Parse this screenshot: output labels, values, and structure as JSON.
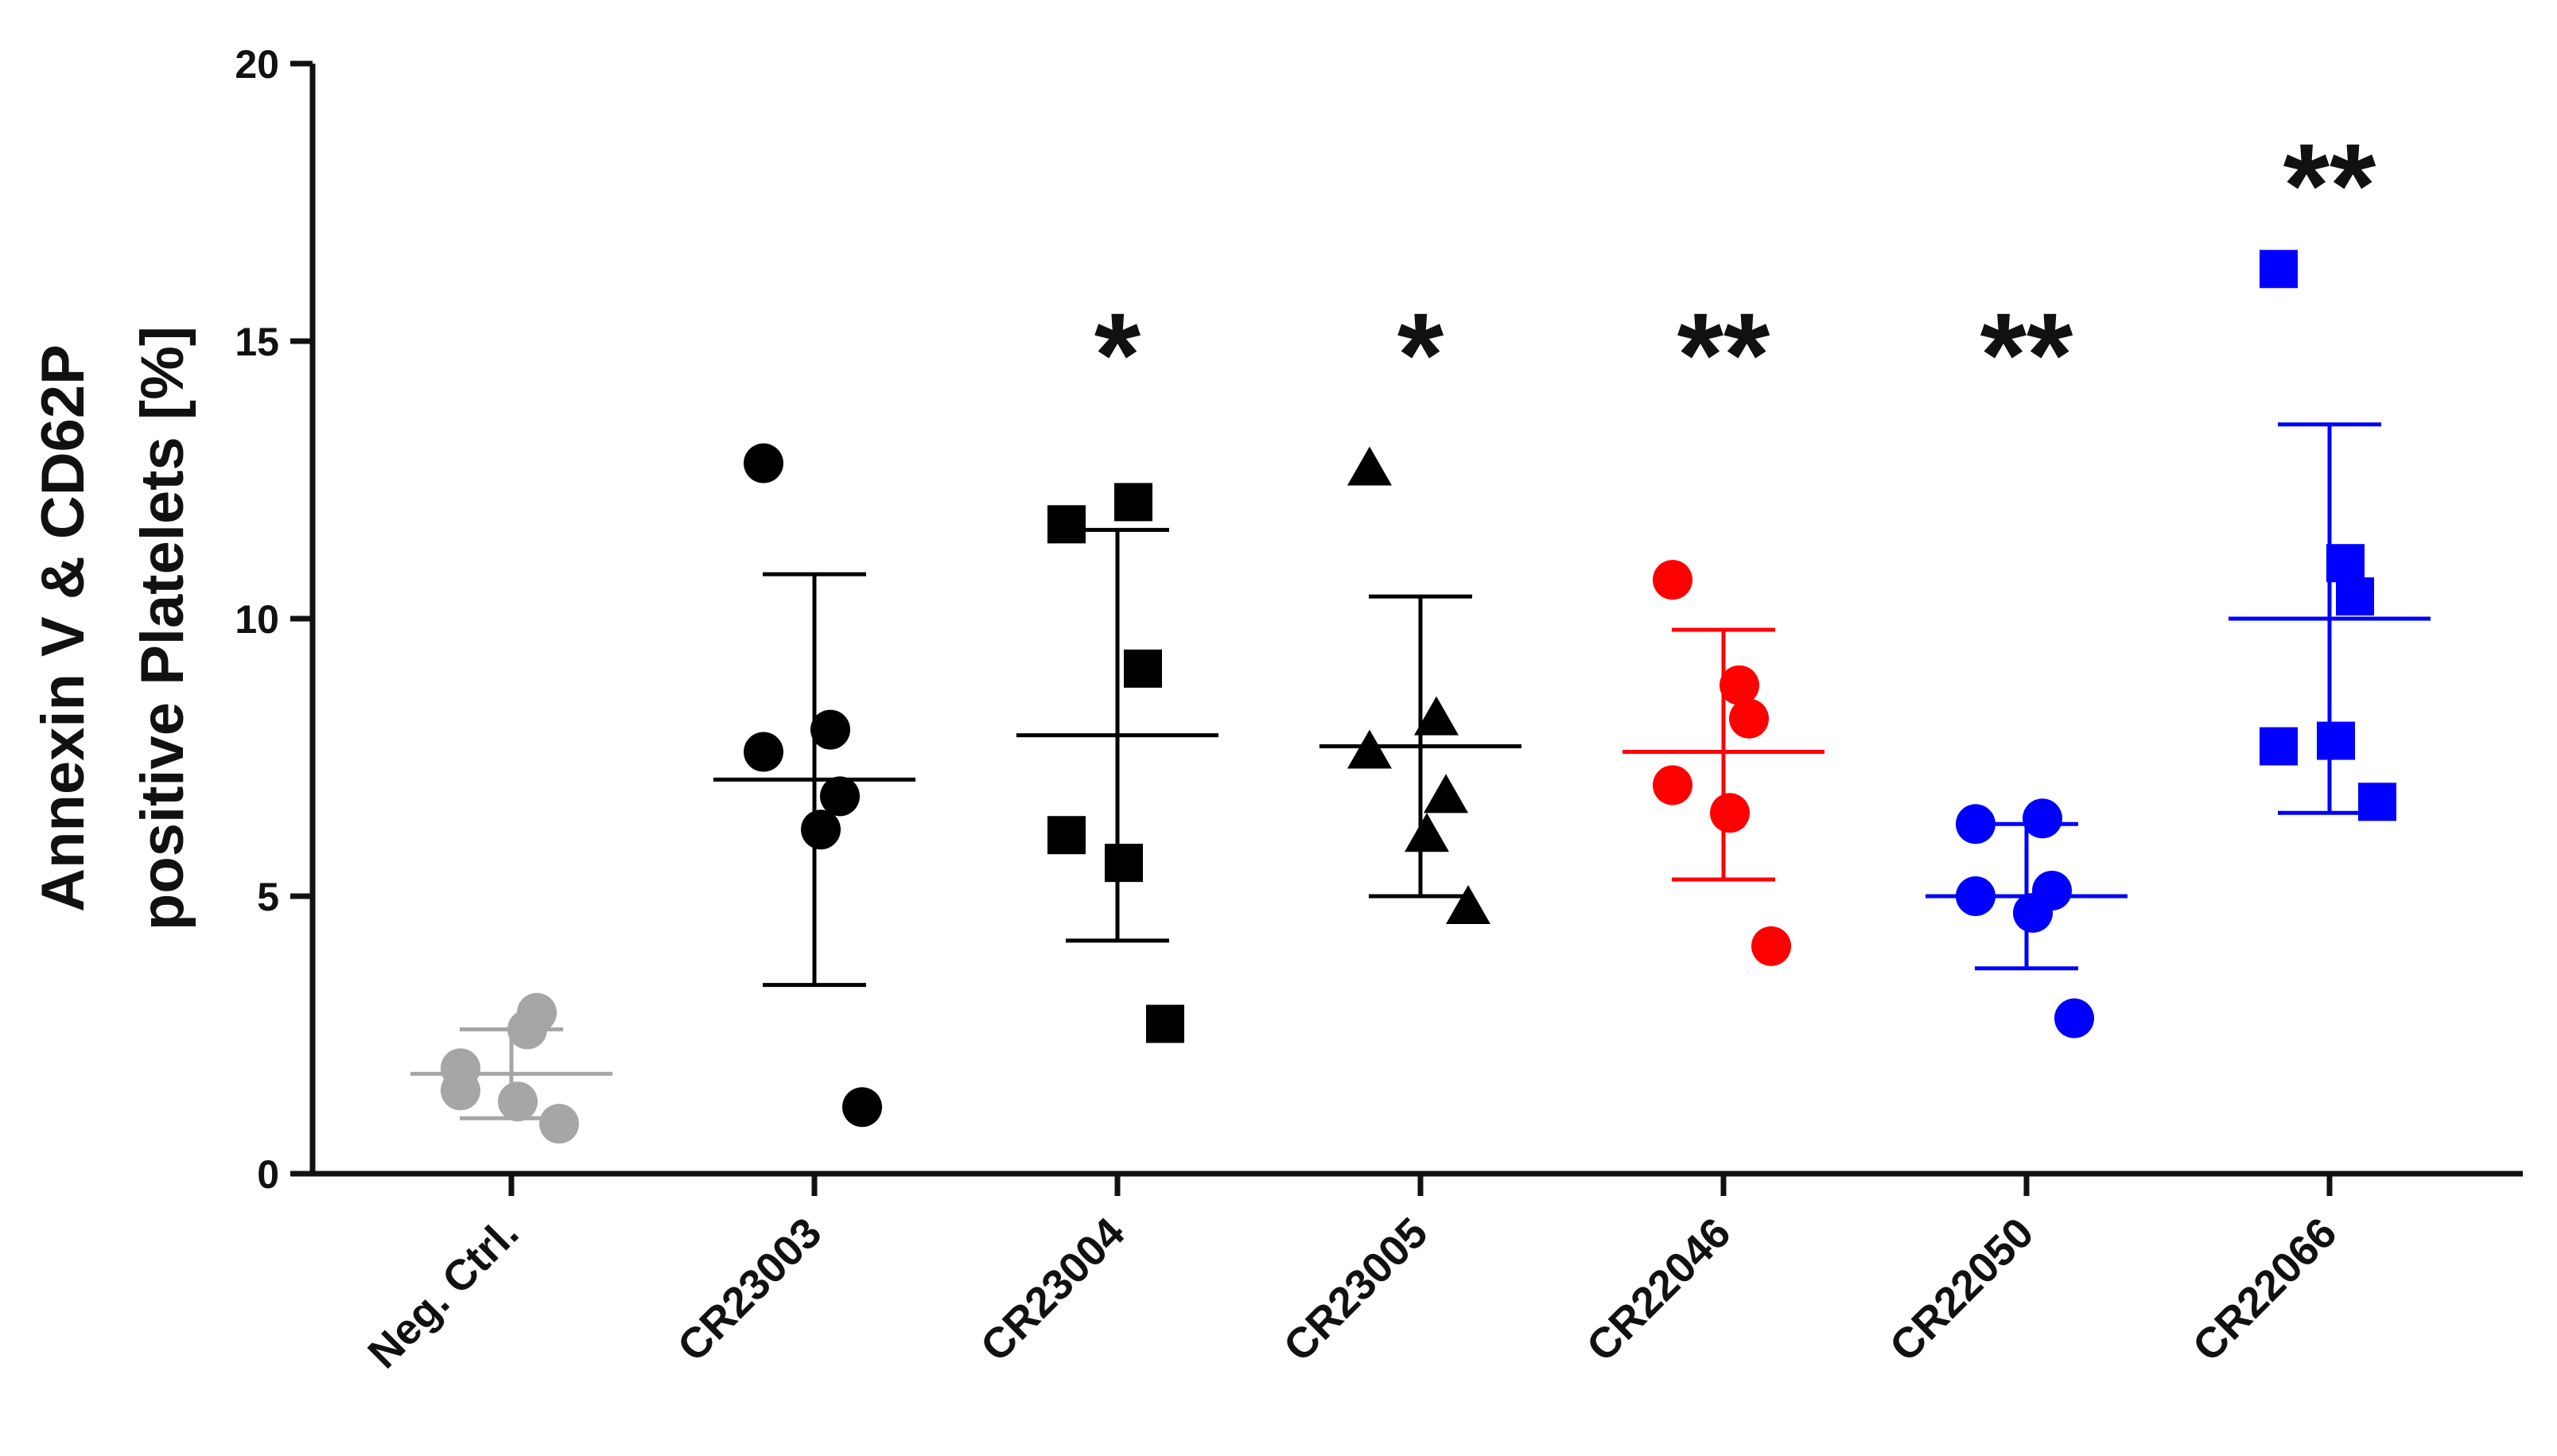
{
  "chart_data": {
    "type": "scatter",
    "title": "",
    "ylabel_line1": "Annexin V & CD62P",
    "ylabel_line2": "positive Platelets [%]",
    "xlabel": "",
    "ylim": [
      0,
      20
    ],
    "yticks": [
      0,
      5,
      10,
      15,
      20
    ],
    "grid": false,
    "groups": [
      {
        "name": "Neg. Ctrl.",
        "marker": "circle",
        "color": "#a6a6a6",
        "points": [
          1.9,
          2.6,
          2.9,
          1.5,
          1.3,
          0.9
        ],
        "mean": 1.8,
        "sd_low": 1.0,
        "sd_high": 2.6,
        "significance": ""
      },
      {
        "name": "CR23003",
        "marker": "circle",
        "color": "#000000",
        "points": [
          12.8,
          8.0,
          6.8,
          7.6,
          6.2,
          1.2
        ],
        "mean": 7.1,
        "sd_low": 3.4,
        "sd_high": 10.8,
        "significance": ""
      },
      {
        "name": "CR23004",
        "marker": "square",
        "color": "#000000",
        "points": [
          11.7,
          12.1,
          9.1,
          6.1,
          5.6,
          2.7
        ],
        "mean": 7.9,
        "sd_low": 4.2,
        "sd_high": 11.6,
        "significance": "*"
      },
      {
        "name": "CR23005",
        "marker": "triangle",
        "color": "#000000",
        "points": [
          12.7,
          8.2,
          6.8,
          7.6,
          6.1,
          4.8
        ],
        "mean": 7.7,
        "sd_low": 5.0,
        "sd_high": 10.4,
        "significance": "*"
      },
      {
        "name": "CR22046",
        "marker": "circle",
        "color": "#ff0000",
        "points": [
          10.7,
          8.8,
          8.2,
          7.0,
          6.5,
          4.1
        ],
        "mean": 7.6,
        "sd_low": 5.3,
        "sd_high": 9.8,
        "significance": "**"
      },
      {
        "name": "CR22050",
        "marker": "circle",
        "color": "#0000ff",
        "points": [
          6.3,
          6.4,
          5.1,
          5.0,
          4.7,
          2.8
        ],
        "mean": 5.0,
        "sd_low": 3.7,
        "sd_high": 6.3,
        "significance": "**"
      },
      {
        "name": "CR22066",
        "marker": "square",
        "color": "#0000ff",
        "points": [
          16.3,
          11.0,
          10.4,
          7.7,
          7.8,
          6.7
        ],
        "mean": 10.0,
        "sd_low": 6.5,
        "sd_high": 13.5,
        "significance": "**"
      }
    ]
  }
}
